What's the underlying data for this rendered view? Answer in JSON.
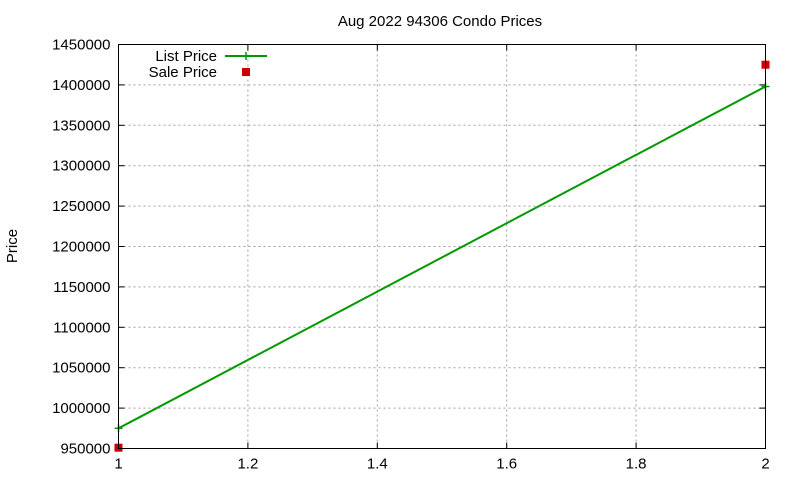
{
  "chart_data": {
    "type": "line",
    "title": "Aug 2022 94306 Condo Prices",
    "xlabel": "",
    "ylabel": "Price",
    "xlim": [
      1,
      2
    ],
    "ylim": [
      950000,
      1450000
    ],
    "xticks": [
      1,
      1.2,
      1.4,
      1.6,
      1.8,
      2
    ],
    "yticks": [
      950000,
      1000000,
      1050000,
      1100000,
      1150000,
      1200000,
      1250000,
      1300000,
      1350000,
      1400000,
      1450000
    ],
    "grid": true,
    "legend_position": "top-left",
    "series": [
      {
        "name": "List Price",
        "style": "linespoints",
        "marker": "plus",
        "color": "#009900",
        "x": [
          1,
          2
        ],
        "y": [
          975000,
          1398000
        ]
      },
      {
        "name": "Sale Price",
        "style": "points",
        "marker": "square",
        "color": "#cc0000",
        "x": [
          1,
          2
        ],
        "y": [
          951000,
          1425000
        ]
      }
    ]
  }
}
